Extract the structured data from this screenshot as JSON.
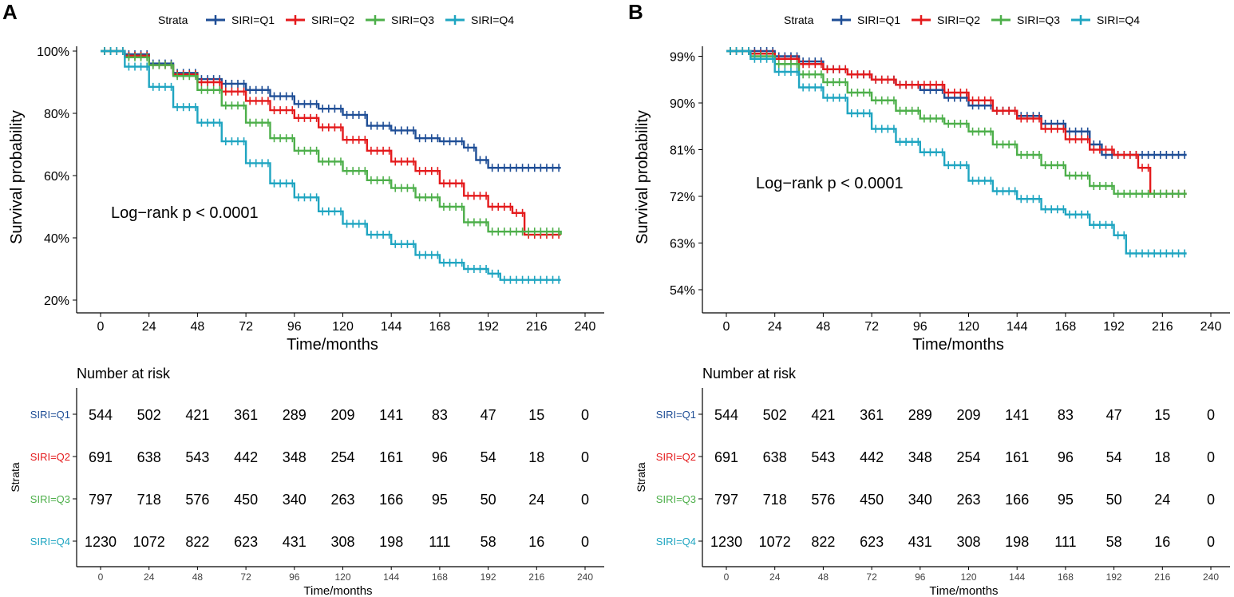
{
  "panels": [
    {
      "letter": "A",
      "legend": {
        "title": "Strata",
        "entries": [
          "SIRI=Q1",
          "SIRI=Q2",
          "SIRI=Q3",
          "SIRI=Q4"
        ]
      },
      "annotation": "Log−rank   p < 0.0001",
      "risk_table": {
        "title": "Number at risk",
        "y_title": "Strata",
        "x_title": "Time/months",
        "times": [
          0,
          24,
          48,
          72,
          96,
          120,
          144,
          168,
          192,
          216,
          240
        ],
        "rows": [
          {
            "label": "SIRI=Q1",
            "counts": [
              544,
              502,
              421,
              361,
              289,
              209,
              141,
              83,
              47,
              15,
              0
            ]
          },
          {
            "label": "SIRI=Q2",
            "counts": [
              691,
              638,
              543,
              442,
              348,
              254,
              161,
              96,
              54,
              18,
              0
            ]
          },
          {
            "label": "SIRI=Q3",
            "counts": [
              797,
              718,
              576,
              450,
              340,
              263,
              166,
              95,
              50,
              24,
              0
            ]
          },
          {
            "label": "SIRI=Q4",
            "counts": [
              1230,
              1072,
              822,
              623,
              431,
              308,
              198,
              111,
              58,
              16,
              0
            ]
          }
        ]
      }
    },
    {
      "letter": "B",
      "legend": {
        "title": "Strata",
        "entries": [
          "SIRI=Q1",
          "SIRI=Q2",
          "SIRI=Q3",
          "SIRI=Q4"
        ]
      },
      "annotation": "Log−rank   p < 0.0001",
      "risk_table": {
        "title": "Number at risk",
        "y_title": "Strata",
        "x_title": "Time/months",
        "times": [
          0,
          24,
          48,
          72,
          96,
          120,
          144,
          168,
          192,
          216,
          240
        ],
        "rows": [
          {
            "label": "SIRI=Q1",
            "counts": [
              544,
              502,
              421,
              361,
              289,
              209,
              141,
              83,
              47,
              15,
              0
            ]
          },
          {
            "label": "SIRI=Q2",
            "counts": [
              691,
              638,
              543,
              442,
              348,
              254,
              161,
              96,
              54,
              18,
              0
            ]
          },
          {
            "label": "SIRI=Q3",
            "counts": [
              797,
              718,
              576,
              450,
              340,
              263,
              166,
              95,
              50,
              24,
              0
            ]
          },
          {
            "label": "SIRI=Q4",
            "counts": [
              1230,
              1072,
              822,
              623,
              431,
              308,
              198,
              111,
              58,
              16,
              0
            ]
          }
        ]
      }
    }
  ],
  "colors": {
    "SIRI=Q1": "#1f4e96",
    "SIRI=Q2": "#e41a1c",
    "SIRI=Q3": "#4daf4a",
    "SIRI=Q4": "#1fa5c1"
  },
  "chart_data": [
    {
      "type": "line",
      "title": "A",
      "xlabel": "Time/months",
      "ylabel": "Survival probability",
      "xlim": [
        0,
        240
      ],
      "ylim": [
        0.2,
        1.0
      ],
      "xticks": [
        0,
        24,
        48,
        72,
        96,
        120,
        144,
        168,
        192,
        216,
        240
      ],
      "yticks": [
        0.2,
        0.4,
        0.6,
        0.8,
        1.0
      ],
      "ytick_labels": [
        "20%",
        "40%",
        "60%",
        "80%",
        "100%"
      ],
      "grid": false,
      "legend": "top",
      "series": [
        {
          "name": "SIRI=Q1",
          "x": [
            0,
            12,
            24,
            36,
            48,
            60,
            72,
            84,
            96,
            108,
            120,
            132,
            144,
            156,
            168,
            180,
            186,
            192,
            228
          ],
          "y": [
            1.0,
            0.99,
            0.96,
            0.93,
            0.91,
            0.895,
            0.875,
            0.855,
            0.83,
            0.815,
            0.795,
            0.76,
            0.745,
            0.72,
            0.71,
            0.69,
            0.65,
            0.625,
            0.625
          ]
        },
        {
          "name": "SIRI=Q2",
          "x": [
            0,
            12,
            24,
            36,
            48,
            60,
            72,
            84,
            96,
            108,
            120,
            132,
            144,
            156,
            168,
            180,
            192,
            204,
            210,
            228
          ],
          "y": [
            1.0,
            0.985,
            0.955,
            0.925,
            0.9,
            0.87,
            0.84,
            0.81,
            0.785,
            0.755,
            0.715,
            0.68,
            0.645,
            0.615,
            0.575,
            0.535,
            0.5,
            0.48,
            0.41,
            0.41
          ]
        },
        {
          "name": "SIRI=Q3",
          "x": [
            0,
            12,
            24,
            36,
            48,
            60,
            72,
            84,
            96,
            108,
            120,
            132,
            144,
            156,
            168,
            180,
            192,
            228
          ],
          "y": [
            1.0,
            0.98,
            0.955,
            0.92,
            0.875,
            0.825,
            0.77,
            0.72,
            0.68,
            0.645,
            0.615,
            0.585,
            0.56,
            0.53,
            0.5,
            0.45,
            0.42,
            0.41
          ]
        },
        {
          "name": "SIRI=Q4",
          "x": [
            0,
            12,
            24,
            36,
            48,
            60,
            72,
            84,
            96,
            108,
            120,
            132,
            144,
            156,
            168,
            180,
            192,
            198,
            228
          ],
          "y": [
            1.0,
            0.95,
            0.885,
            0.82,
            0.77,
            0.71,
            0.64,
            0.575,
            0.53,
            0.485,
            0.445,
            0.41,
            0.38,
            0.345,
            0.32,
            0.3,
            0.285,
            0.265,
            0.265
          ]
        }
      ]
    },
    {
      "type": "line",
      "title": "B",
      "xlabel": "Time/months",
      "ylabel": "Survival probability",
      "xlim": [
        0,
        240
      ],
      "ylim": [
        0.52,
        1.0
      ],
      "xticks": [
        0,
        24,
        48,
        72,
        96,
        120,
        144,
        168,
        192,
        216,
        240
      ],
      "yticks": [
        0.54,
        0.63,
        0.72,
        0.81,
        0.9,
        0.99
      ],
      "ytick_labels": [
        "54%",
        "63%",
        "72%",
        "81%",
        "90%",
        "99%"
      ],
      "grid": false,
      "legend": "top",
      "series": [
        {
          "name": "SIRI=Q1",
          "x": [
            0,
            12,
            24,
            36,
            48,
            60,
            72,
            84,
            96,
            108,
            120,
            132,
            144,
            156,
            168,
            180,
            186,
            228
          ],
          "y": [
            1.0,
            1.0,
            0.99,
            0.98,
            0.965,
            0.955,
            0.945,
            0.935,
            0.925,
            0.91,
            0.895,
            0.885,
            0.875,
            0.86,
            0.845,
            0.82,
            0.8,
            0.8
          ]
        },
        {
          "name": "SIRI=Q2",
          "x": [
            0,
            12,
            24,
            36,
            48,
            60,
            72,
            84,
            96,
            108,
            120,
            132,
            144,
            156,
            168,
            180,
            192,
            204,
            210,
            228
          ],
          "y": [
            1.0,
            0.995,
            0.985,
            0.975,
            0.965,
            0.955,
            0.945,
            0.935,
            0.935,
            0.92,
            0.905,
            0.885,
            0.87,
            0.85,
            0.83,
            0.81,
            0.8,
            0.775,
            0.725,
            0.725
          ]
        },
        {
          "name": "SIRI=Q3",
          "x": [
            0,
            12,
            24,
            36,
            48,
            60,
            72,
            84,
            96,
            108,
            120,
            132,
            144,
            156,
            168,
            180,
            192,
            228
          ],
          "y": [
            1.0,
            0.99,
            0.975,
            0.955,
            0.94,
            0.92,
            0.905,
            0.885,
            0.87,
            0.86,
            0.845,
            0.82,
            0.8,
            0.78,
            0.76,
            0.74,
            0.725,
            0.725
          ]
        },
        {
          "name": "SIRI=Q4",
          "x": [
            0,
            12,
            24,
            36,
            48,
            60,
            72,
            84,
            96,
            108,
            120,
            132,
            144,
            156,
            168,
            180,
            192,
            198,
            228
          ],
          "y": [
            1.0,
            0.985,
            0.96,
            0.93,
            0.91,
            0.88,
            0.85,
            0.825,
            0.805,
            0.78,
            0.75,
            0.73,
            0.715,
            0.695,
            0.685,
            0.665,
            0.645,
            0.61,
            0.61
          ]
        }
      ]
    }
  ]
}
